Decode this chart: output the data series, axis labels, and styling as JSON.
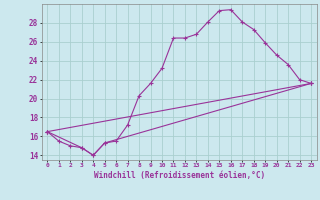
{
  "xlabel": "Windchill (Refroidissement éolien,°C)",
  "bg_color": "#cce8ee",
  "grid_color": "#aacfcf",
  "line_color": "#993399",
  "xlim": [
    -0.5,
    23.5
  ],
  "ylim": [
    13.5,
    30.0
  ],
  "yticks": [
    14,
    16,
    18,
    20,
    22,
    24,
    26,
    28
  ],
  "xticks": [
    0,
    1,
    2,
    3,
    4,
    5,
    6,
    7,
    8,
    9,
    10,
    11,
    12,
    13,
    14,
    15,
    16,
    17,
    18,
    19,
    20,
    21,
    22,
    23
  ],
  "lines": [
    {
      "x": [
        0,
        1,
        2,
        3,
        4,
        5,
        6,
        7,
        8,
        9,
        10,
        11,
        12,
        13,
        14,
        15,
        16,
        17,
        18,
        19,
        20,
        21,
        22,
        23
      ],
      "y": [
        16.5,
        15.5,
        15.0,
        14.8,
        14.0,
        15.3,
        15.5,
        17.2,
        20.3,
        21.6,
        23.2,
        26.4,
        26.4,
        26.8,
        28.1,
        29.3,
        29.4,
        28.1,
        27.3,
        25.9,
        24.6,
        23.6,
        22.0,
        21.6
      ]
    },
    {
      "x": [
        0,
        3,
        4,
        5,
        23
      ],
      "y": [
        16.5,
        14.8,
        14.0,
        15.3,
        21.6
      ]
    },
    {
      "x": [
        0,
        23
      ],
      "y": [
        16.5,
        21.6
      ]
    }
  ]
}
